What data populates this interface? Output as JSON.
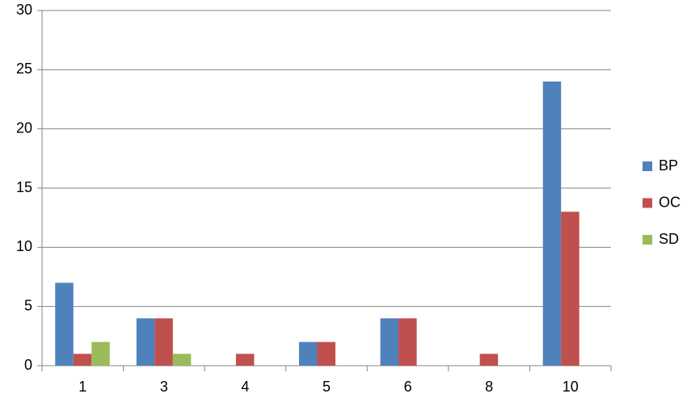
{
  "chart_data": {
    "type": "bar",
    "categories": [
      "1",
      "3",
      "4",
      "5",
      "6",
      "8",
      "10"
    ],
    "series": [
      {
        "name": "BP",
        "color": "#4f81bd",
        "values": [
          7,
          4,
          0,
          2,
          4,
          0,
          24
        ]
      },
      {
        "name": "OC",
        "color": "#c0504d",
        "values": [
          1,
          4,
          1,
          2,
          4,
          1,
          13
        ]
      },
      {
        "name": "SD",
        "color": "#9bbb59",
        "values": [
          2,
          1,
          0,
          0,
          0,
          0,
          0
        ]
      }
    ],
    "ylim": [
      0,
      30
    ],
    "yticks": [
      0,
      5,
      10,
      15,
      20,
      25,
      30
    ],
    "grid": true,
    "legend": "right"
  }
}
